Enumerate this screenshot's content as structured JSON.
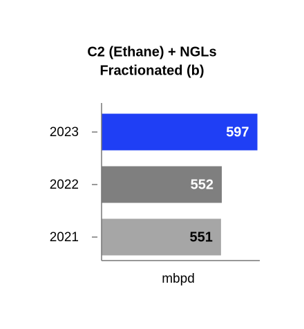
{
  "chart_data": {
    "type": "hbar",
    "title": [
      "C2 (Ethane) + NGLs",
      "Fractionated (b)"
    ],
    "categories": [
      "2023",
      "2022",
      "2021"
    ],
    "values": [
      597,
      552,
      551
    ],
    "colors": [
      "#1f3ff5",
      "#7f7f7f",
      "#a6a6a6"
    ],
    "label_colors": [
      "#ffffff",
      "#ffffff",
      "#000000"
    ],
    "xlim": [
      400,
      600
    ],
    "xlabel": "mbpd"
  }
}
